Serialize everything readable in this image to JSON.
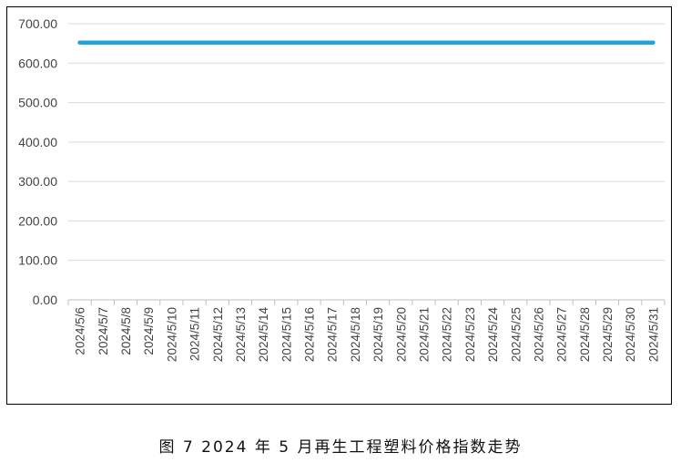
{
  "figure_caption": "图 7  2024 年 5 月再生工程塑料价格指数走势",
  "chart_data": {
    "type": "line",
    "categories": [
      "2024/5/6",
      "2024/5/7",
      "2024/5/8",
      "2024/5/9",
      "2024/5/10",
      "2024/5/11",
      "2024/5/12",
      "2024/5/13",
      "2024/5/14",
      "2024/5/15",
      "2024/5/16",
      "2024/5/17",
      "2024/5/18",
      "2024/5/19",
      "2024/5/20",
      "2024/5/21",
      "2024/5/22",
      "2024/5/23",
      "2024/5/24",
      "2024/5/25",
      "2024/5/26",
      "2024/5/27",
      "2024/5/28",
      "2024/5/29",
      "2024/5/30",
      "2024/5/31"
    ],
    "series": [
      {
        "values": [
          652,
          652,
          652,
          652,
          652,
          652,
          652,
          652,
          652,
          652,
          652,
          652,
          652,
          652,
          652,
          652,
          652,
          652,
          652,
          652,
          652,
          652,
          652,
          652,
          652,
          652
        ],
        "color": "#1fa3dc"
      }
    ],
    "y_ticks": [
      "0.00",
      "100.00",
      "200.00",
      "300.00",
      "400.00",
      "500.00",
      "600.00",
      "700.00"
    ],
    "ylim": [
      0,
      700
    ],
    "grid": true,
    "legend": "none"
  }
}
